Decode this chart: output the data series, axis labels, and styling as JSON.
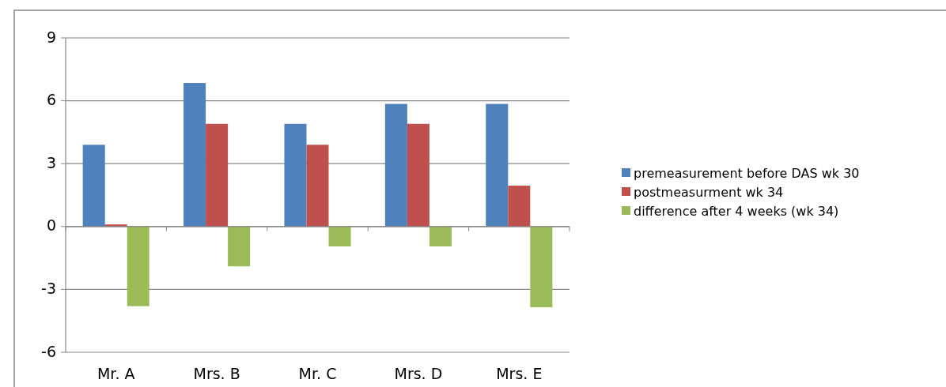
{
  "chart_data": {
    "type": "bar",
    "categories": [
      "Mr. A",
      "Mrs. B",
      "Mr. C",
      "Mrs. D",
      "Mrs. E"
    ],
    "series": [
      {
        "name": "premeasurement before DAS wk 30",
        "color": "#4f81bd",
        "values": [
          3.9,
          6.85,
          4.9,
          5.85,
          5.85
        ]
      },
      {
        "name": "postmeasurment wk 34",
        "color": "#c0504d",
        "values": [
          0.1,
          4.9,
          3.9,
          4.9,
          1.95
        ]
      },
      {
        "name": "difference after 4 weeks (wk 34)",
        "color": "#9bbb59",
        "values": [
          -3.8,
          -1.9,
          -0.95,
          -0.95,
          -3.85
        ]
      }
    ],
    "ylim": [
      -6,
      9
    ],
    "yticks": [
      -6,
      -3,
      0,
      3,
      6,
      9
    ],
    "grid": "y",
    "legend": "right"
  }
}
